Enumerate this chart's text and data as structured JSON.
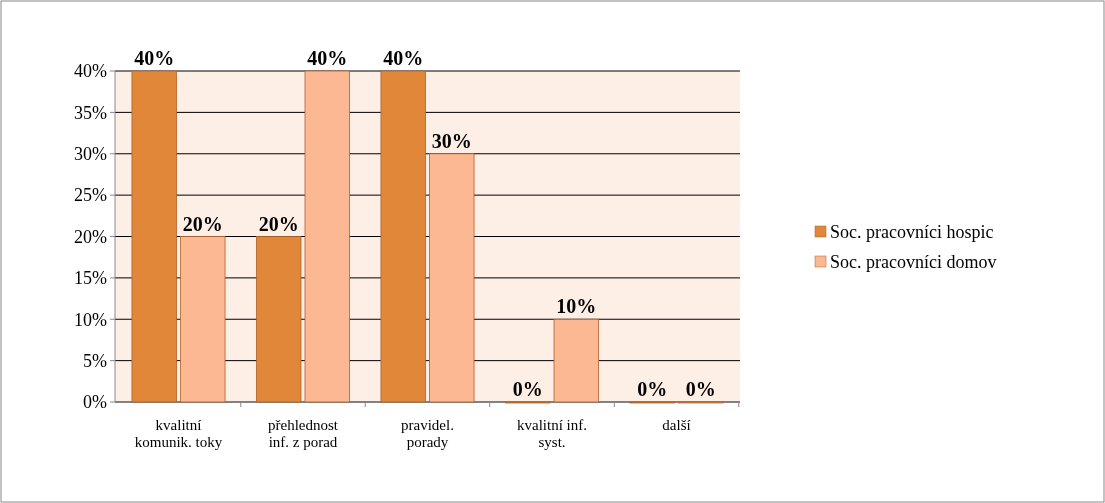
{
  "chart_data": {
    "type": "bar",
    "categories": [
      "kvalitní komunik. toky",
      "přehlednost inf. z porad",
      "pravidel. porady",
      "kvalitní inf. syst.",
      "další"
    ],
    "series": [
      {
        "name": "Soc. pracovníci hospic",
        "color": "#e0873a",
        "values": [
          40,
          20,
          40,
          0,
          0
        ],
        "value_labels": [
          "40%",
          "20%",
          "40%",
          "0%",
          "0%"
        ]
      },
      {
        "name": "Soc. pracovníci domov",
        "color": "#fbb892",
        "values": [
          20,
          40,
          30,
          10,
          0
        ],
        "value_labels": [
          "20%",
          "40%",
          "30%",
          "10%",
          "0%"
        ]
      }
    ],
    "ylim": [
      0,
      40
    ],
    "yticks": [
      {
        "value": 0,
        "label": "0%"
      },
      {
        "value": 5,
        "label": "5%"
      },
      {
        "value": 10,
        "label": "10%"
      },
      {
        "value": 15,
        "label": "15%"
      },
      {
        "value": 20,
        "label": "20%"
      },
      {
        "value": 25,
        "label": "25%"
      },
      {
        "value": 30,
        "label": "30%"
      },
      {
        "value": 35,
        "label": "35%"
      },
      {
        "value": 40,
        "label": "40%"
      }
    ],
    "grid": "y",
    "legend": "right"
  }
}
